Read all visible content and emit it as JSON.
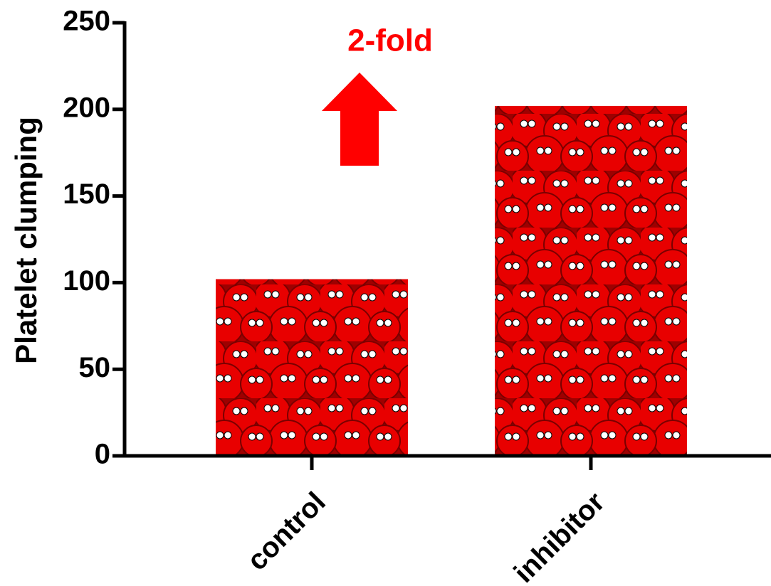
{
  "chart_data": {
    "type": "bar",
    "title": null,
    "y_label": "Platelet clumping",
    "annotation": "2-fold",
    "categories": [
      "control",
      "inhibitor"
    ],
    "values": [
      102,
      202
    ],
    "color": "#9e0000",
    "ylim": [
      0,
      250
    ],
    "yticks": [
      0,
      50,
      100,
      150,
      200,
      250
    ]
  }
}
